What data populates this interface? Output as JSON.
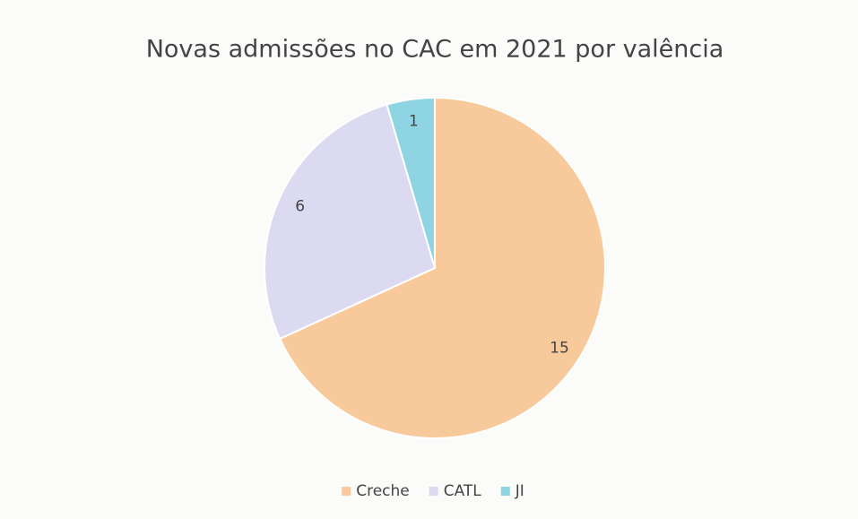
{
  "chart_data": {
    "type": "pie",
    "title": "Novas admissões no CAC em 2021 por valência",
    "categories": [
      "Creche",
      "CATL",
      "JI"
    ],
    "values": [
      15,
      6,
      1
    ],
    "colors": [
      "#f7c99b",
      "#dcdaf0",
      "#8fd4e2"
    ],
    "legend": "bottom"
  }
}
